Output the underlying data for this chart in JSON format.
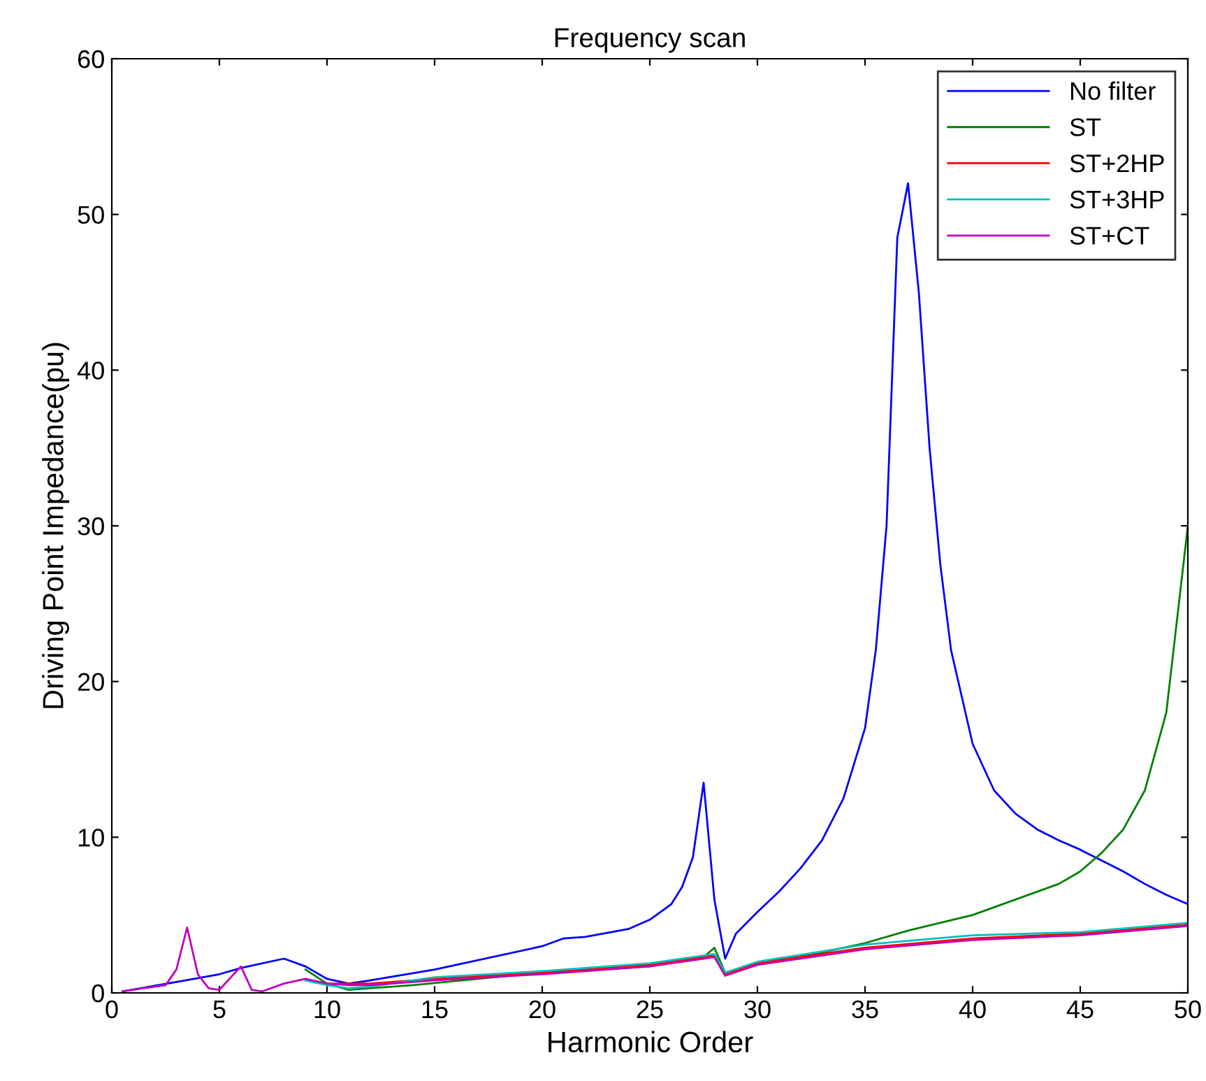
{
  "chart_data": {
    "type": "line",
    "title": "Frequency scan",
    "xlabel": "Harmonic Order",
    "ylabel": "Driving Point Impedance(pu)",
    "xlim": [
      0,
      50
    ],
    "ylim": [
      0,
      60
    ],
    "xticks": [
      0,
      5,
      10,
      15,
      20,
      25,
      30,
      35,
      40,
      45,
      50
    ],
    "yticks": [
      0,
      10,
      20,
      30,
      40,
      50,
      60
    ],
    "grid": false,
    "legend": "top right",
    "marker": "none",
    "line_style": "solid",
    "series": [
      {
        "name": "No filter",
        "color": "#0000ff",
        "x": [
          0.5,
          3,
          5,
          6,
          8,
          9,
          10,
          11,
          12,
          15,
          20,
          21,
          22,
          24,
          25,
          26,
          26.5,
          27,
          27.5,
          28,
          28.5,
          29,
          30,
          31,
          32,
          33,
          34,
          35,
          35.5,
          36,
          36.5,
          37,
          37.5,
          38,
          38.5,
          39,
          40,
          41,
          42,
          43,
          44,
          45,
          46,
          47,
          48,
          49,
          50
        ],
        "values": [
          0.1,
          0.7,
          1.2,
          1.6,
          2.2,
          1.7,
          0.9,
          0.6,
          0.8,
          1.5,
          3.0,
          3.5,
          3.6,
          4.1,
          4.7,
          5.7,
          6.8,
          8.7,
          13.5,
          6,
          2.2,
          3.8,
          5.2,
          6.5,
          8,
          9.8,
          12.5,
          17,
          22,
          30,
          48.5,
          52,
          45,
          35,
          27.5,
          22,
          16,
          13,
          11.5,
          10.5,
          9.8,
          9.2,
          8.5,
          7.8,
          7,
          6.3,
          5.7
        ]
      },
      {
        "name": "ST",
        "color": "#008000",
        "x": [
          9,
          10,
          11,
          12,
          14,
          20,
          25,
          27.5,
          28,
          28.5,
          30,
          33,
          35,
          37,
          40,
          42,
          44,
          45,
          46,
          47,
          48,
          49,
          50
        ],
        "values": [
          1.5,
          0.6,
          0.2,
          0.3,
          0.5,
          1.3,
          1.7,
          2.3,
          2.9,
          1.3,
          1.9,
          2.6,
          3.2,
          4,
          5,
          6,
          7,
          7.8,
          9,
          10.5,
          13,
          18,
          30
        ]
      },
      {
        "name": "ST+2HP",
        "color": "#ff0000",
        "x": [
          10,
          11,
          12,
          15,
          20,
          25,
          27.5,
          28,
          28.5,
          30,
          35,
          40,
          45,
          50
        ],
        "values": [
          0.6,
          0.6,
          0.6,
          0.9,
          1.3,
          1.8,
          2.3,
          2.4,
          1.2,
          1.9,
          2.9,
          3.5,
          3.8,
          4.4
        ]
      },
      {
        "name": "ST+3HP",
        "color": "#00bfbf",
        "x": [
          9,
          10,
          11,
          12,
          15,
          20,
          25,
          27.5,
          28,
          28.5,
          30,
          35,
          40,
          45,
          50
        ],
        "values": [
          0.8,
          0.5,
          0.3,
          0.4,
          1.0,
          1.4,
          1.9,
          2.4,
          2.5,
          1.3,
          2.0,
          3.1,
          3.7,
          3.9,
          4.5
        ]
      },
      {
        "name": "ST+CT",
        "color": "#bf00bf",
        "x": [
          0.5,
          2.5,
          3,
          3.5,
          4,
          4.5,
          5,
          6,
          6.5,
          7,
          8,
          9,
          10,
          11,
          12,
          15,
          20,
          25,
          27.5,
          28,
          28.5,
          30,
          35,
          40,
          45,
          50
        ],
        "values": [
          0.1,
          0.5,
          1.5,
          4.2,
          1.2,
          0.3,
          0.2,
          1.7,
          0.2,
          0.1,
          0.6,
          0.9,
          0.6,
          0.5,
          0.5,
          0.8,
          1.2,
          1.7,
          2.2,
          2.3,
          1.1,
          1.8,
          2.8,
          3.4,
          3.7,
          4.3
        ]
      }
    ]
  }
}
